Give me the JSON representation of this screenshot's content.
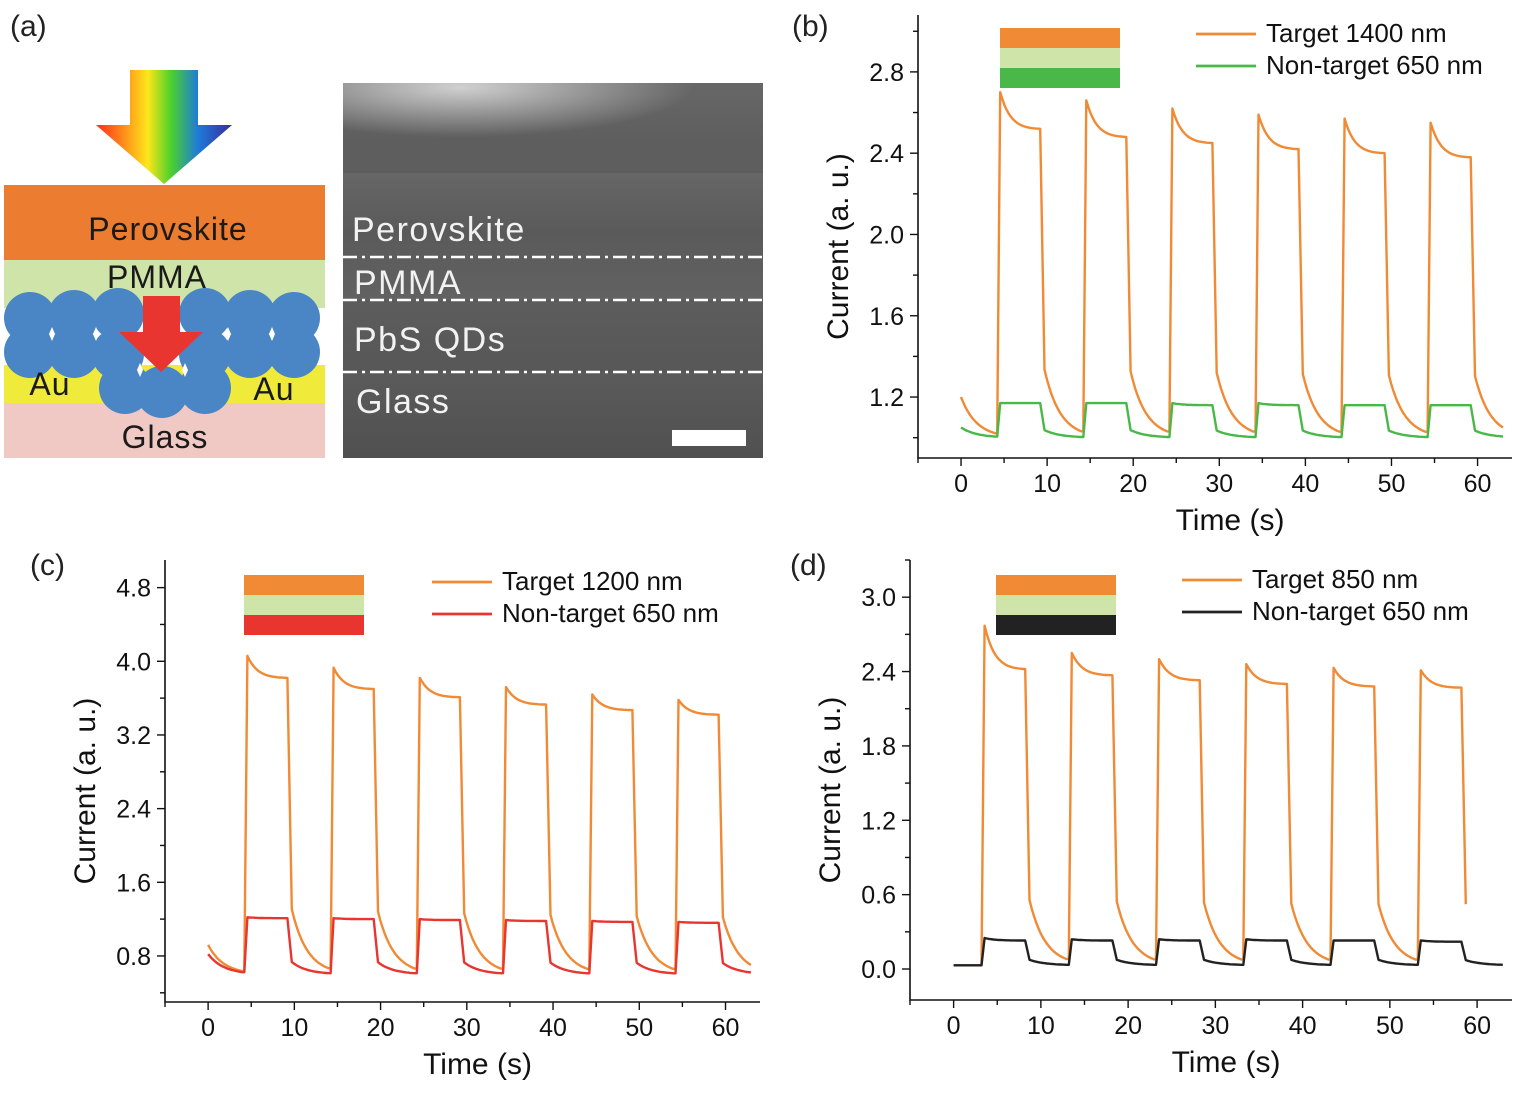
{
  "panels": {
    "a": {
      "label": "(a)",
      "schematic": {
        "layers": {
          "perovskite": "Perovskite",
          "pmma": "PMMA",
          "au_left": "Au",
          "au_right": "Au",
          "glass": "Glass"
        }
      },
      "sem": {
        "layers": [
          "Perovskite",
          "PMMA",
          "PbS QDs",
          "Glass"
        ]
      }
    }
  },
  "colors": {
    "orange": "#f08a35",
    "green": "#4ab848",
    "red": "#e8352f",
    "black": "#222222",
    "pmma": "#cfe4a8",
    "perovskite": "#ec7c30",
    "au": "#f0ea3a",
    "glass": "#f1c9c4",
    "qd_blue": "#4a86c5"
  },
  "chart_data": [
    {
      "id": "b",
      "label": "(b)",
      "type": "line",
      "xlabel": "Time (s)",
      "ylabel": "Current (a. u.)",
      "xlim": [
        -5,
        64
      ],
      "ylim": [
        0.9,
        3.08
      ],
      "xticks": [
        0,
        10,
        20,
        30,
        40,
        50,
        60
      ],
      "yticks": [
        1.2,
        1.6,
        2.0,
        2.4,
        2.8
      ],
      "ytick_labels": [
        "1.2",
        "1.6",
        "2.0",
        "2.4",
        "2.8"
      ],
      "legend_placement": "top-right",
      "legend_swatches": [
        "orange",
        "pmma",
        "green"
      ],
      "series": [
        {
          "name": "Target   1400 nm",
          "color": "orange",
          "base": 1.0,
          "start": 1.2,
          "peaks": [
            [
              4.2,
              2.7,
              2.52
            ],
            [
              14.2,
              2.66,
              2.48
            ],
            [
              24.2,
              2.62,
              2.45
            ],
            [
              34.2,
              2.59,
              2.42
            ],
            [
              44.2,
              2.57,
              2.4
            ],
            [
              54.2,
              2.55,
              2.38
            ]
          ],
          "on": 4.2,
          "off": 9.2,
          "period": 10,
          "end": 63
        },
        {
          "name": "Non-target 650 nm",
          "color": "green",
          "base": 1.0,
          "start": 1.05,
          "peaks": [
            [
              4.2,
              1.17,
              1.17
            ],
            [
              14.2,
              1.17,
              1.17
            ],
            [
              24.2,
              1.17,
              1.16
            ],
            [
              34.2,
              1.17,
              1.16
            ],
            [
              44.2,
              1.16,
              1.16
            ],
            [
              54.2,
              1.16,
              1.16
            ]
          ],
          "on": 4.2,
          "off": 9.2,
          "period": 10,
          "end": 63
        }
      ]
    },
    {
      "id": "c",
      "label": "(c)",
      "type": "line",
      "xlabel": "Time (s)",
      "ylabel": "Current (a. u.)",
      "xlim": [
        -5,
        64
      ],
      "ylim": [
        0.3,
        5.1
      ],
      "xticks": [
        0,
        10,
        20,
        30,
        40,
        50,
        60
      ],
      "yticks": [
        0.8,
        1.6,
        2.4,
        3.2,
        4.0,
        4.8
      ],
      "ytick_labels": [
        "0.8",
        "1.6",
        "2.4",
        "3.2",
        "4.0",
        "4.8"
      ],
      "legend_placement": "top-right",
      "legend_swatches": [
        "orange",
        "pmma",
        "red"
      ],
      "series": [
        {
          "name": "Target   1200 nm",
          "color": "orange",
          "base": 0.6,
          "start": 0.92,
          "peaks": [
            [
              4.2,
              4.06,
              3.82
            ],
            [
              14.2,
              3.93,
              3.7
            ],
            [
              24.2,
              3.82,
              3.61
            ],
            [
              34.2,
              3.72,
              3.53
            ],
            [
              44.2,
              3.64,
              3.47
            ],
            [
              54.2,
              3.58,
              3.42
            ]
          ],
          "on": 4.2,
          "off": 9.2,
          "period": 10,
          "end": 63
        },
        {
          "name": "Non-target 650 nm",
          "color": "red",
          "base": 0.6,
          "start": 0.82,
          "peaks": [
            [
              4.2,
              1.22,
              1.21
            ],
            [
              14.2,
              1.21,
              1.2
            ],
            [
              24.2,
              1.2,
              1.19
            ],
            [
              34.2,
              1.19,
              1.18
            ],
            [
              44.2,
              1.18,
              1.17
            ],
            [
              54.2,
              1.17,
              1.16
            ]
          ],
          "on": 4.2,
          "off": 9.2,
          "period": 10,
          "end": 63
        }
      ]
    },
    {
      "id": "d",
      "label": "(d)",
      "type": "line",
      "xlabel": "Time (s)",
      "ylabel": "Current (a. u.)",
      "xlim": [
        -5,
        64
      ],
      "ylim": [
        -0.25,
        3.3
      ],
      "xticks": [
        0,
        10,
        20,
        30,
        40,
        50,
        60
      ],
      "yticks": [
        0.0,
        0.6,
        1.2,
        1.8,
        2.4,
        3.0
      ],
      "ytick_labels": [
        "0.0",
        "0.6",
        "1.2",
        "1.8",
        "2.4",
        "3.0"
      ],
      "legend_placement": "top-right",
      "legend_swatches": [
        "orange",
        "pmma",
        "black"
      ],
      "series": [
        {
          "name": "Target   850 nm",
          "color": "orange",
          "base": 0.03,
          "start": 0.03,
          "peaks": [
            [
              3.2,
              2.77,
              2.42
            ],
            [
              13.2,
              2.55,
              2.37
            ],
            [
              23.2,
              2.5,
              2.33
            ],
            [
              33.2,
              2.46,
              2.3
            ],
            [
              43.2,
              2.43,
              2.28
            ],
            [
              53.2,
              2.41,
              2.27
            ]
          ],
          "on": 3.2,
          "off": 8.2,
          "period": 10,
          "end": 58.6
        },
        {
          "name": "Non-target 650 nm",
          "color": "black",
          "base": 0.03,
          "start": 0.03,
          "peaks": [
            [
              3.2,
              0.25,
              0.23
            ],
            [
              13.2,
              0.24,
              0.23
            ],
            [
              23.2,
              0.24,
              0.23
            ],
            [
              33.2,
              0.24,
              0.23
            ],
            [
              43.2,
              0.23,
              0.23
            ],
            [
              53.2,
              0.23,
              0.22
            ]
          ],
          "on": 3.2,
          "off": 8.2,
          "period": 10,
          "end": 63
        }
      ]
    }
  ]
}
